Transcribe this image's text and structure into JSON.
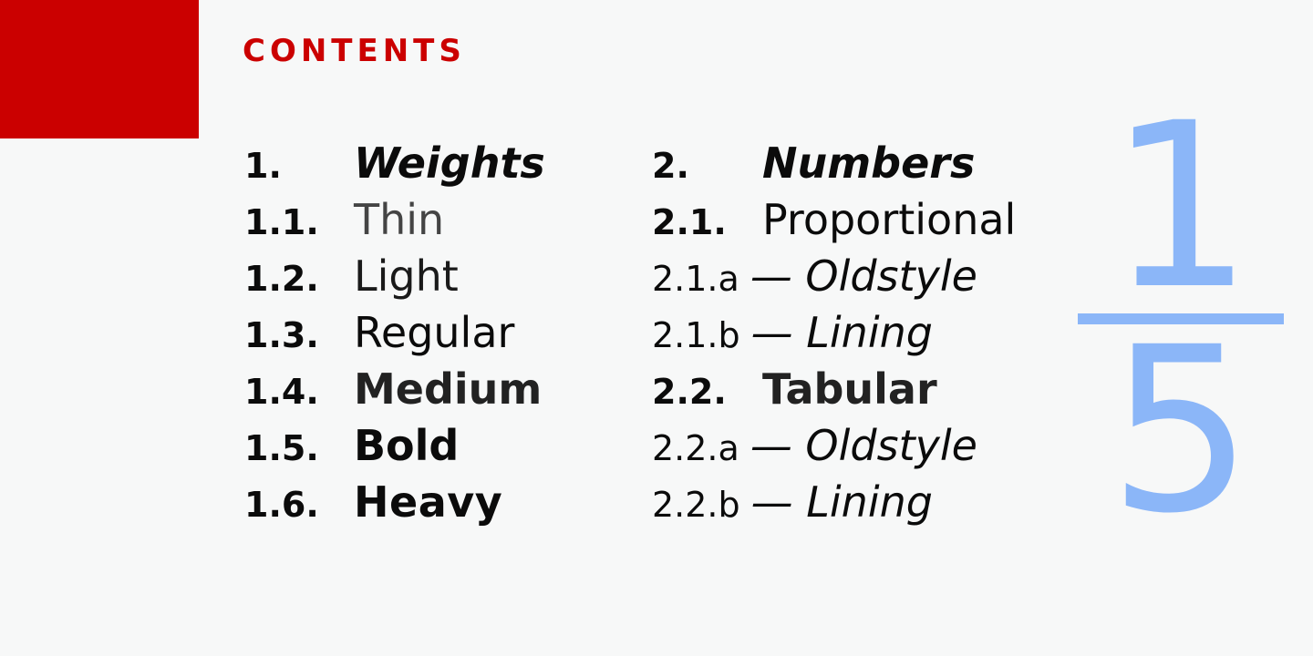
{
  "heading": "CONTENTS",
  "colors": {
    "accent_red": "#cb0000",
    "fraction_blue": "#8bb6f8",
    "background": "#f7f8f8"
  },
  "toc": {
    "weights": [
      {
        "num": "1.",
        "label": "Weights"
      },
      {
        "num": "1.1.",
        "label": "Thin"
      },
      {
        "num": "1.2.",
        "label": "Light"
      },
      {
        "num": "1.3.",
        "label": "Regular"
      },
      {
        "num": "1.4.",
        "label": "Medium"
      },
      {
        "num": "1.5.",
        "label": "Bold"
      },
      {
        "num": "1.6.",
        "label": "Heavy"
      }
    ],
    "numbers": [
      {
        "num": "2.",
        "label": "Numbers"
      },
      {
        "num": "2.1.",
        "label": "Proportional"
      },
      {
        "num": "2.1.a",
        "label": "— Oldstyle"
      },
      {
        "num": "2.1.b",
        "label": "— Lining"
      },
      {
        "num": "2.2.",
        "label": "Tabular"
      },
      {
        "num": "2.2.a",
        "label": "— Oldstyle"
      },
      {
        "num": "2.2.b",
        "label": "— Lining"
      }
    ]
  },
  "fraction": {
    "numerator": "1",
    "denominator": "5"
  }
}
